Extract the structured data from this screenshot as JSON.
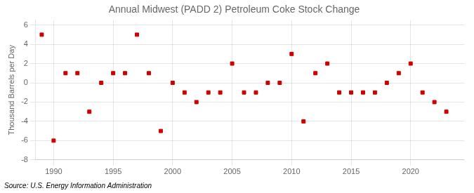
{
  "chart_data": {
    "type": "scatter",
    "title": "Annual Midwest (PADD 2) Petroleum Coke Stock Change",
    "ylabel": "Thousand Barrels per Day",
    "source": "Source: U.S. Energy Information Administration",
    "x": [
      1989,
      1990,
      1991,
      1992,
      1993,
      1994,
      1995,
      1996,
      1997,
      1998,
      1999,
      2000,
      2001,
      2002,
      2003,
      2004,
      2005,
      2006,
      2007,
      2008,
      2009,
      2010,
      2011,
      2012,
      2013,
      2014,
      2015,
      2016,
      2017,
      2018,
      2019,
      2020,
      2021,
      2022,
      2023
    ],
    "values": [
      5,
      -6,
      1,
      1,
      -3,
      0,
      1,
      1,
      5,
      1,
      -5,
      0,
      -1,
      -2,
      -1,
      -1,
      2,
      -1,
      -1,
      0,
      0,
      3,
      -4,
      1,
      2,
      -1,
      -1,
      -1,
      -1,
      0,
      1,
      2,
      -1,
      -2,
      -3
    ],
    "color": "#cc0000",
    "marker": "square",
    "xlim": [
      1988.5,
      2024.5
    ],
    "ylim": [
      -8,
      6.5
    ],
    "xticks": [
      1990,
      1995,
      2000,
      2005,
      2010,
      2015,
      2020
    ],
    "yticks": [
      -8,
      -6,
      -4,
      -2,
      0,
      2,
      4,
      6
    ],
    "grid": true
  }
}
